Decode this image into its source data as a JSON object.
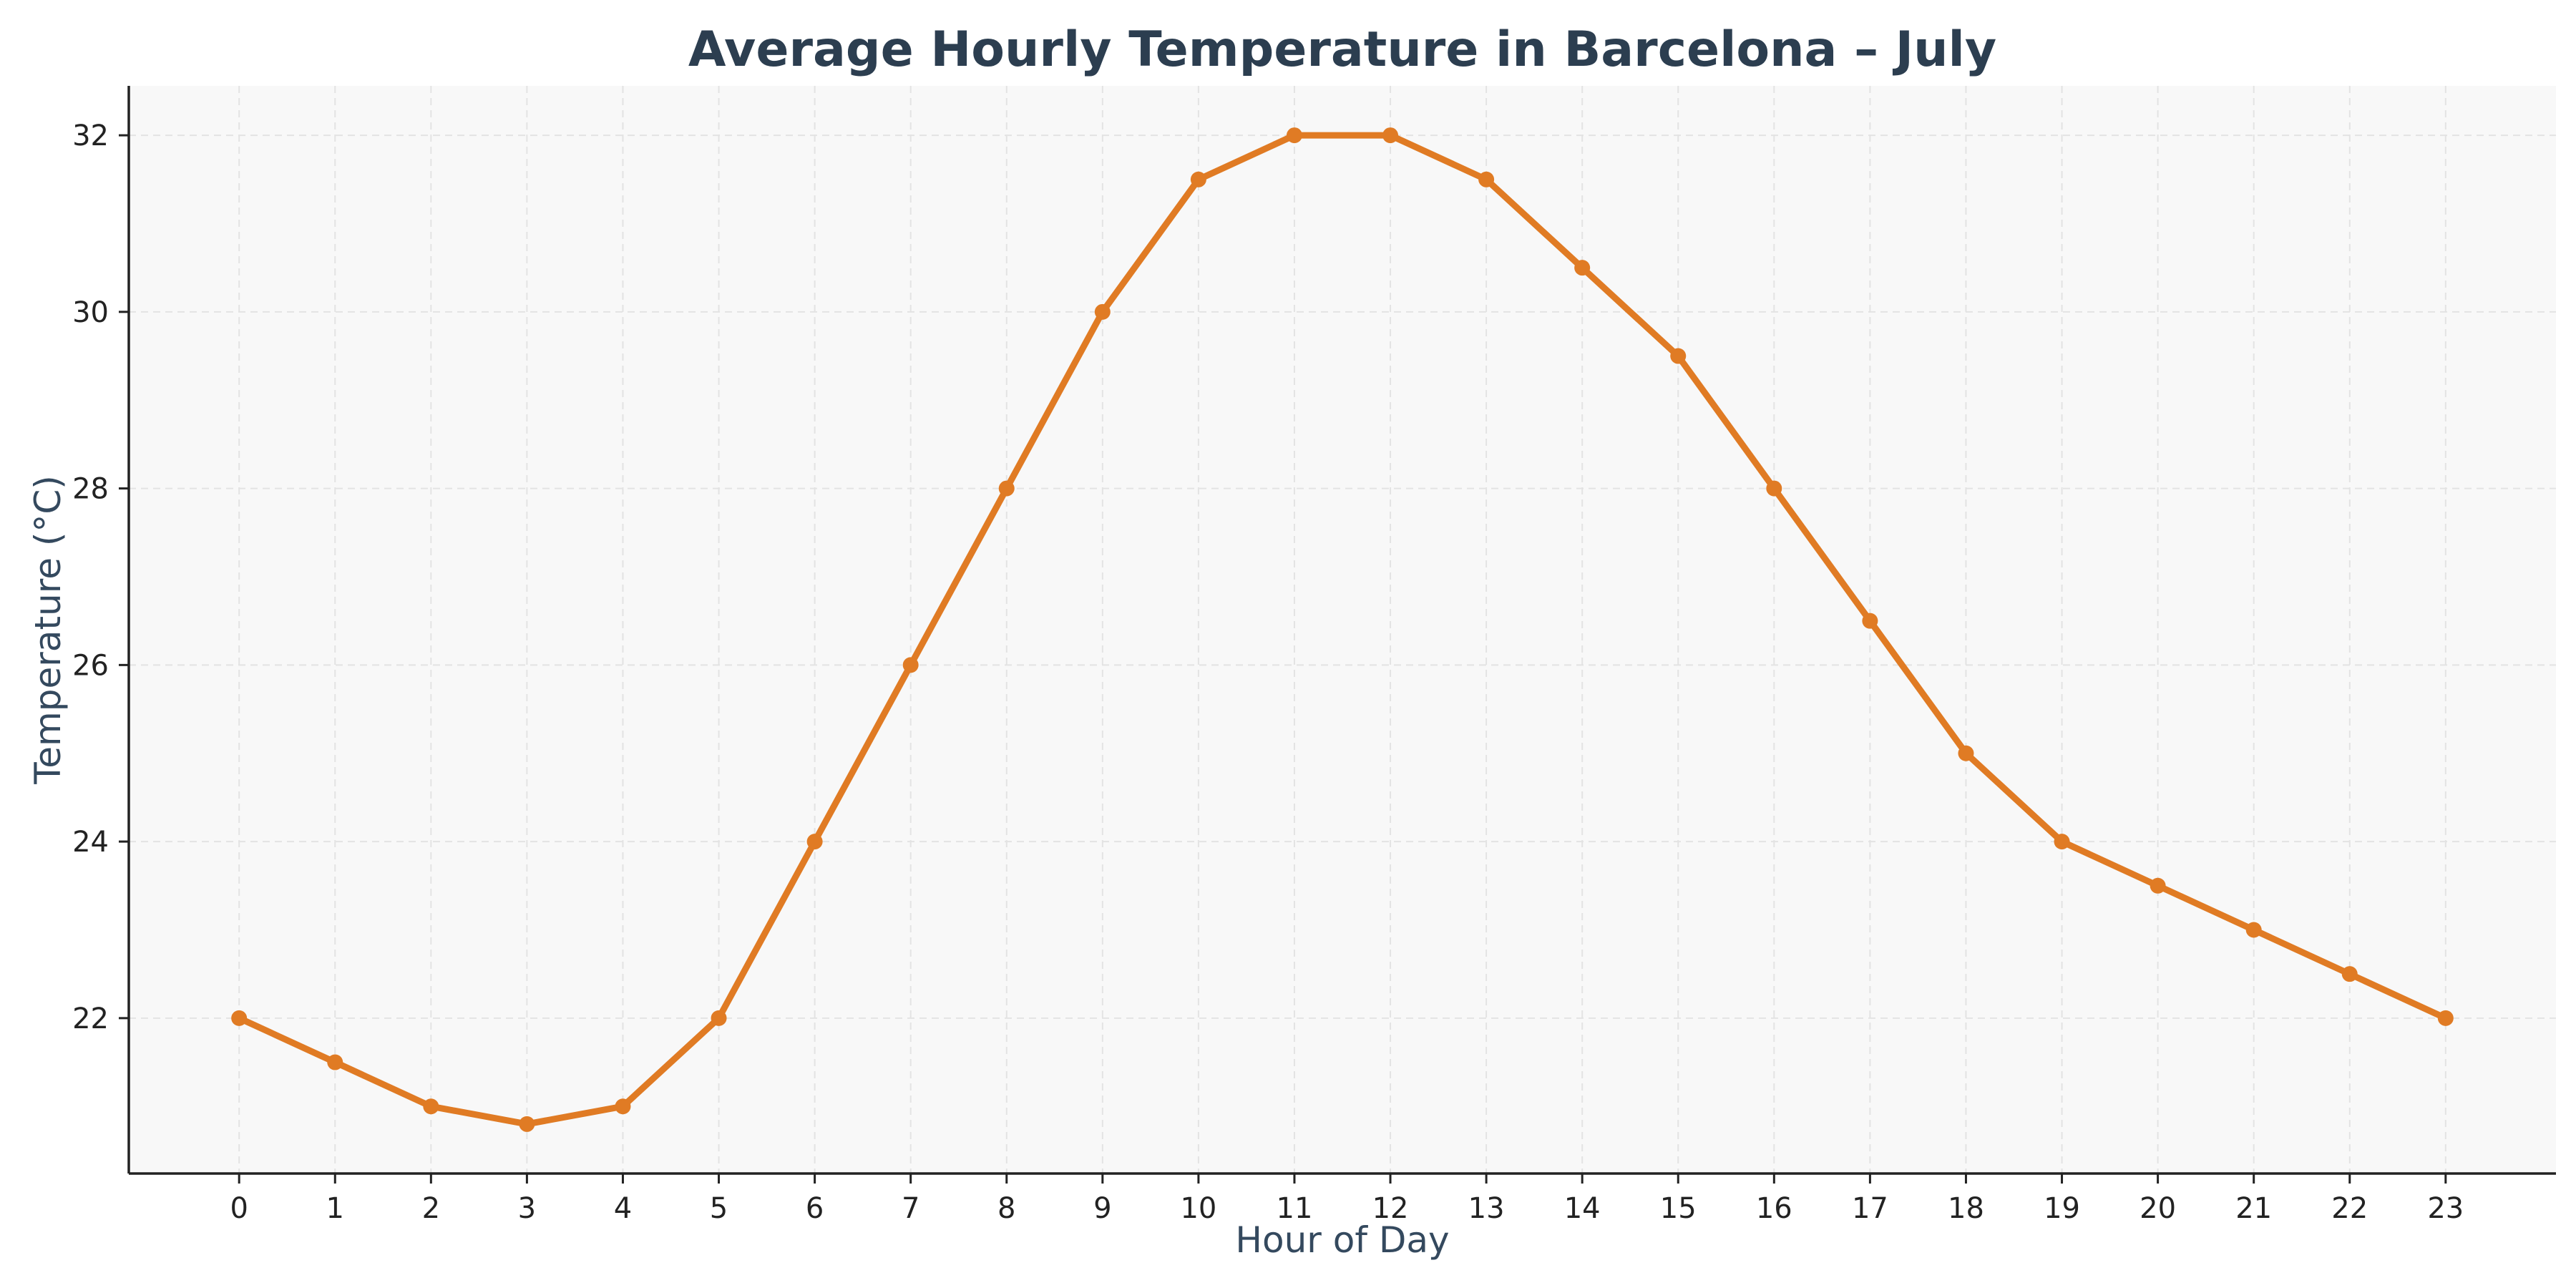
{
  "chart_data": {
    "type": "line",
    "title": "Average Hourly Temperature in Barcelona – July",
    "xlabel": "Hour of Day",
    "ylabel": "Temperature (°C)",
    "x": [
      0,
      1,
      2,
      3,
      4,
      5,
      6,
      7,
      8,
      9,
      10,
      11,
      12,
      13,
      14,
      15,
      16,
      17,
      18,
      19,
      20,
      21,
      22,
      23
    ],
    "series": [
      {
        "name": "Temperature",
        "values": [
          22,
          21.5,
          21,
          20.8,
          21,
          22,
          24,
          26,
          28,
          30,
          31.5,
          32,
          32,
          31.5,
          30.5,
          29.5,
          28,
          26.5,
          25,
          24,
          23.5,
          23,
          22.5,
          22
        ]
      }
    ],
    "xticks": [
      "0",
      "1",
      "2",
      "3",
      "4",
      "5",
      "6",
      "7",
      "8",
      "9",
      "10",
      "11",
      "12",
      "13",
      "14",
      "15",
      "16",
      "17",
      "18",
      "19",
      "20",
      "21",
      "22",
      "23"
    ],
    "yticks": [
      "22",
      "24",
      "26",
      "28",
      "30",
      "32"
    ],
    "xlim": [
      -1.15,
      24.15
    ],
    "ylim": [
      20.24,
      32.56
    ],
    "grid": true,
    "colors": {
      "line": "#e07b24",
      "plot_bg": "#f8f8f8",
      "grid": "#e3e3e3",
      "axis": "#222222"
    }
  }
}
